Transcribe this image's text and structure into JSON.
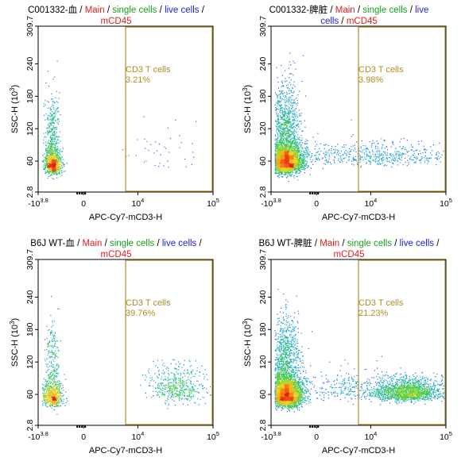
{
  "page": {
    "gate_color": "#b08d20",
    "axis": {
      "x_label": "APC-Cy7-mCD3-H",
      "y_label": "SSC-H",
      "y_label_unit": "(10",
      "y_label_exp": "3",
      "y_label_close": ")",
      "y_ticks": [
        "309.7",
        "240",
        "180",
        "120",
        "60",
        "2.8"
      ],
      "x_ticks": [
        {
          "base": "-10",
          "exp": "3.8"
        },
        {
          "base": "0",
          "exp": ""
        },
        {
          "base": "10",
          "exp": "4"
        },
        {
          "base": "10",
          "exp": "5"
        }
      ]
    }
  },
  "chart_data": [
    {
      "type": "scatter",
      "title_parts": [
        {
          "text": "C001332-血",
          "color": "#000000"
        },
        {
          "text": " / ",
          "color": "#000000"
        },
        {
          "text": "Main",
          "color": "#e0201c"
        },
        {
          "text": " / ",
          "color": "#000000"
        },
        {
          "text": "single cells",
          "color": "#18a01c"
        },
        {
          "text": " / ",
          "color": "#000000"
        },
        {
          "text": "live cells",
          "color": "#2020e0"
        },
        {
          "text": " /",
          "color": "#000000"
        }
      ],
      "title_line2": [
        {
          "text": "mCD45",
          "color": "#e0201c"
        }
      ],
      "xlabel": "APC-Cy7-mCD3-H",
      "ylabel": "SSC-H (10³)",
      "ylim": [
        2.8,
        309.7
      ],
      "gate": {
        "name": "CD3 T cells",
        "percent": "3.21%",
        "x_start_frac": 0.5
      },
      "populations": [
        {
          "x": 0.08,
          "y": 50,
          "sx": 0.025,
          "sy": 18,
          "n": 900
        },
        {
          "x": 0.08,
          "y": 110,
          "sx": 0.02,
          "sy": 40,
          "n": 250
        },
        {
          "x": 0.7,
          "y": 70,
          "sx": 0.12,
          "sy": 30,
          "n": 40
        }
      ]
    },
    {
      "type": "scatter",
      "title_parts": [
        {
          "text": "C001332-脾脏",
          "color": "#000000"
        },
        {
          "text": " / ",
          "color": "#000000"
        },
        {
          "text": "Main",
          "color": "#e0201c"
        },
        {
          "text": " / ",
          "color": "#000000"
        },
        {
          "text": "single cells",
          "color": "#18a01c"
        },
        {
          "text": " / ",
          "color": "#000000"
        },
        {
          "text": "live",
          "color": "#2020e0"
        }
      ],
      "title_line2": [
        {
          "text": "cells",
          "color": "#2020e0"
        },
        {
          "text": " / ",
          "color": "#000000"
        },
        {
          "text": "mCD45",
          "color": "#e0201c"
        }
      ],
      "xlabel": "APC-Cy7-mCD3-H",
      "ylabel": "SSC-H (10³)",
      "ylim": [
        2.8,
        309.7
      ],
      "gate": {
        "name": "CD3 T cells",
        "percent": "3.98%",
        "x_start_frac": 0.5
      },
      "populations": [
        {
          "x": 0.08,
          "y": 55,
          "sx": 0.05,
          "sy": 22,
          "n": 3000
        },
        {
          "x": 0.08,
          "y": 120,
          "sx": 0.04,
          "sy": 45,
          "n": 700
        },
        {
          "x": 0.6,
          "y": 65,
          "sx": 0.25,
          "sy": 15,
          "n": 600
        }
      ]
    },
    {
      "type": "scatter",
      "title_parts": [
        {
          "text": "B6J WT-血",
          "color": "#000000"
        },
        {
          "text": " / ",
          "color": "#000000"
        },
        {
          "text": "Main",
          "color": "#e0201c"
        },
        {
          "text": " / ",
          "color": "#000000"
        },
        {
          "text": "single cells",
          "color": "#18a01c"
        },
        {
          "text": " / ",
          "color": "#000000"
        },
        {
          "text": "live cells",
          "color": "#2020e0"
        },
        {
          "text": " /",
          "color": "#000000"
        }
      ],
      "title_line2": [
        {
          "text": "mCD45",
          "color": "#e0201c"
        }
      ],
      "xlabel": "APC-Cy7-mCD3-H",
      "ylabel": "SSC-H (10³)",
      "ylim": [
        2.8,
        309.7
      ],
      "gate": {
        "name": "CD3 T cells",
        "percent": "39.76%",
        "x_start_frac": 0.5
      },
      "populations": [
        {
          "x": 0.08,
          "y": 52,
          "sx": 0.03,
          "sy": 18,
          "n": 600
        },
        {
          "x": 0.08,
          "y": 110,
          "sx": 0.02,
          "sy": 45,
          "n": 180
        },
        {
          "x": 0.8,
          "y": 65,
          "sx": 0.08,
          "sy": 25,
          "n": 500
        }
      ]
    },
    {
      "type": "scatter",
      "title_parts": [
        {
          "text": "B6J WT-脾脏",
          "color": "#000000"
        },
        {
          "text": " / ",
          "color": "#000000"
        },
        {
          "text": "Main",
          "color": "#e0201c"
        },
        {
          "text": " / ",
          "color": "#000000"
        },
        {
          "text": "single cells",
          "color": "#18a01c"
        },
        {
          "text": " / ",
          "color": "#000000"
        },
        {
          "text": "live cells",
          "color": "#2020e0"
        },
        {
          "text": " /",
          "color": "#000000"
        }
      ],
      "title_line2": [
        {
          "text": "mCD45",
          "color": "#e0201c"
        }
      ],
      "xlabel": "APC-Cy7-mCD3-H",
      "ylabel": "SSC-H (10³)",
      "ylim": [
        2.8,
        309.7
      ],
      "gate": {
        "name": "CD3 T cells",
        "percent": "21.23%",
        "x_start_frac": 0.5
      },
      "populations": [
        {
          "x": 0.08,
          "y": 55,
          "sx": 0.05,
          "sy": 22,
          "n": 3000
        },
        {
          "x": 0.08,
          "y": 120,
          "sx": 0.04,
          "sy": 45,
          "n": 700
        },
        {
          "x": 0.78,
          "y": 60,
          "sx": 0.1,
          "sy": 15,
          "n": 1500
        },
        {
          "x": 0.45,
          "y": 65,
          "sx": 0.15,
          "sy": 20,
          "n": 300
        }
      ]
    }
  ]
}
